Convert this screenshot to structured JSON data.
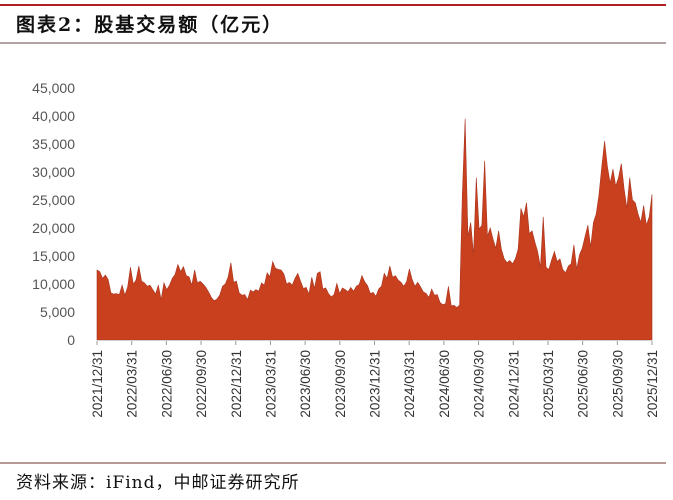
{
  "header": {
    "title": "图表2：股基交易额（亿元）"
  },
  "footer": {
    "source": "资料来源：iFind，中邮证券研究所"
  },
  "colors": {
    "fill": "#c9401f",
    "top_rule": "#b21f24",
    "rule": "#b5a3a3",
    "axis_text": "#555555"
  },
  "chart_data": {
    "type": "area",
    "title": "股基交易额（亿元）",
    "xlabel": "",
    "ylabel": "亿元",
    "ylim": [
      0,
      45000
    ],
    "yticks": [
      0,
      5000,
      10000,
      15000,
      20000,
      25000,
      30000,
      35000,
      40000,
      45000
    ],
    "ytick_labels": [
      "0",
      "5,000",
      "10,000",
      "15,000",
      "20,000",
      "25,000",
      "30,000",
      "35,000",
      "40,000",
      "45,000"
    ],
    "xtick_labels": [
      "2021/12/31",
      "2022/03/31",
      "2022/06/30",
      "2022/09/30",
      "2022/12/31",
      "2023/03/31",
      "2023/06/30",
      "2023/09/30",
      "2023/12/31",
      "2024/03/31",
      "2024/06/30",
      "2024/09/30",
      "2024/12/31",
      "2025/03/31",
      "2025/06/30",
      "2025/09/30",
      "2025/12/31"
    ],
    "grid": false,
    "legend": null,
    "series": [
      {
        "name": "股基交易额",
        "x_start": "2021/12/31",
        "x_end": "2025/12/31",
        "values": [
          12500,
          12200,
          11000,
          11600,
          10800,
          8400,
          8200,
          8300,
          8100,
          9800,
          8000,
          9500,
          13000,
          10000,
          10700,
          13200,
          10500,
          10200,
          9600,
          9800,
          9000,
          8200,
          9800,
          7200,
          10200,
          9000,
          9800,
          11000,
          11700,
          13500,
          12200,
          13100,
          11500,
          11300,
          9800,
          12500,
          10200,
          10500,
          10000,
          9400,
          8600,
          7600,
          7000,
          7300,
          8000,
          9600,
          10000,
          11200,
          13800,
          10300,
          10500,
          8400,
          8000,
          8100,
          7200,
          8900,
          8600,
          9000,
          8700,
          10200,
          9800,
          12000,
          11300,
          14000,
          12800,
          12600,
          12500,
          11800,
          10000,
          10300,
          9800,
          11000,
          11900,
          10500,
          9200,
          9400,
          8200,
          11200,
          9200,
          11900,
          12200,
          9100,
          9300,
          8300,
          7700,
          8100,
          10100,
          8300,
          9300,
          9000,
          8600,
          9400,
          8700,
          9600,
          9900,
          11500,
          10400,
          9700,
          8300,
          8500,
          7800,
          9100,
          9600,
          11900,
          11000,
          13200,
          11200,
          11500,
          10700,
          10300,
          9600,
          10400,
          12700,
          10800,
          9600,
          10300,
          9500,
          8600,
          8300,
          7600,
          9100,
          8000,
          8100,
          6700,
          6300,
          6500,
          9600,
          6100,
          6200,
          5800,
          6200,
          26000,
          39500,
          18500,
          21000,
          15200,
          29000,
          19800,
          20500,
          32000,
          18500,
          20000,
          18000,
          16400,
          19500,
          16200,
          14500,
          13800,
          14200,
          13600,
          14500,
          16200,
          23500,
          22000,
          24500,
          19000,
          19500,
          17500,
          15800,
          13000,
          22000,
          13000,
          12600,
          14300,
          15800,
          14000,
          14500,
          12600,
          12000,
          13200,
          13600,
          17000,
          12700,
          15200,
          16400,
          18500,
          20500,
          16600,
          21000,
          22500,
          26000,
          31000,
          35500,
          31000,
          28000,
          30500,
          27500,
          29000,
          31500,
          27000,
          23500,
          29000,
          25000,
          24500,
          22500,
          21000,
          24000,
          20500,
          22000,
          26000
        ]
      }
    ]
  }
}
